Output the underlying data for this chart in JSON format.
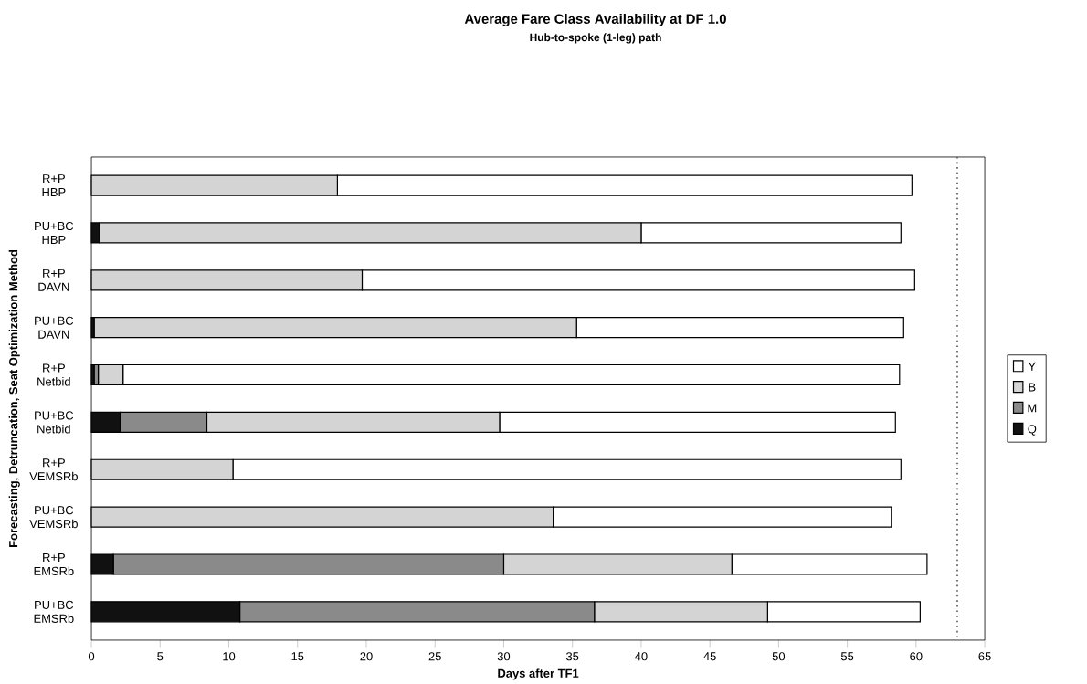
{
  "chart_data": {
    "type": "bar",
    "orientation": "horizontal",
    "stacked": true,
    "title": "Average Fare Class Availability at DF 1.0",
    "subtitle": "Hub-to-spoke (1-leg) path",
    "xlabel": "Days after TF1",
    "ylabel": "Forecasting, Detruncation, Seat Optimization Method",
    "categories": [
      "R+P HBP",
      "PU+BC HBP",
      "R+P DAVN",
      "PU+BC DAVN",
      "R+P Netbid",
      "PU+BC Netbid",
      "R+P VEMSRb",
      "PU+BC VEMSRb",
      "R+P EMSRb",
      "PU+BC EMSRb"
    ],
    "series": [
      {
        "name": "Q",
        "color": "#111111",
        "values": [
          0,
          0.6,
          0,
          0.2,
          0.2,
          2.1,
          0,
          0,
          1.6,
          10.8
        ]
      },
      {
        "name": "M",
        "color": "#8a8a8a",
        "values": [
          0,
          0,
          0,
          0,
          0.3,
          6.3,
          0,
          0,
          28.4,
          25.8
        ]
      },
      {
        "name": "B",
        "color": "#d4d4d4",
        "values": [
          17.9,
          39.4,
          19.7,
          35.1,
          1.8,
          21.3,
          10.3,
          33.6,
          16.6,
          12.6
        ]
      },
      {
        "name": "Y",
        "color": "#ffffff",
        "values": [
          41.8,
          18.9,
          40.2,
          23.8,
          56.5,
          28.8,
          48.6,
          24.6,
          14.2,
          11.1
        ]
      }
    ],
    "xlim": [
      0,
      65
    ],
    "xticks": [
      0,
      5,
      10,
      15,
      20,
      25,
      30,
      35,
      40,
      45,
      50,
      55,
      60,
      65
    ],
    "ref_lines": [
      {
        "axis": "x",
        "value": 63,
        "color": "#555555",
        "line_style": "dotted"
      }
    ],
    "legend": "right"
  }
}
